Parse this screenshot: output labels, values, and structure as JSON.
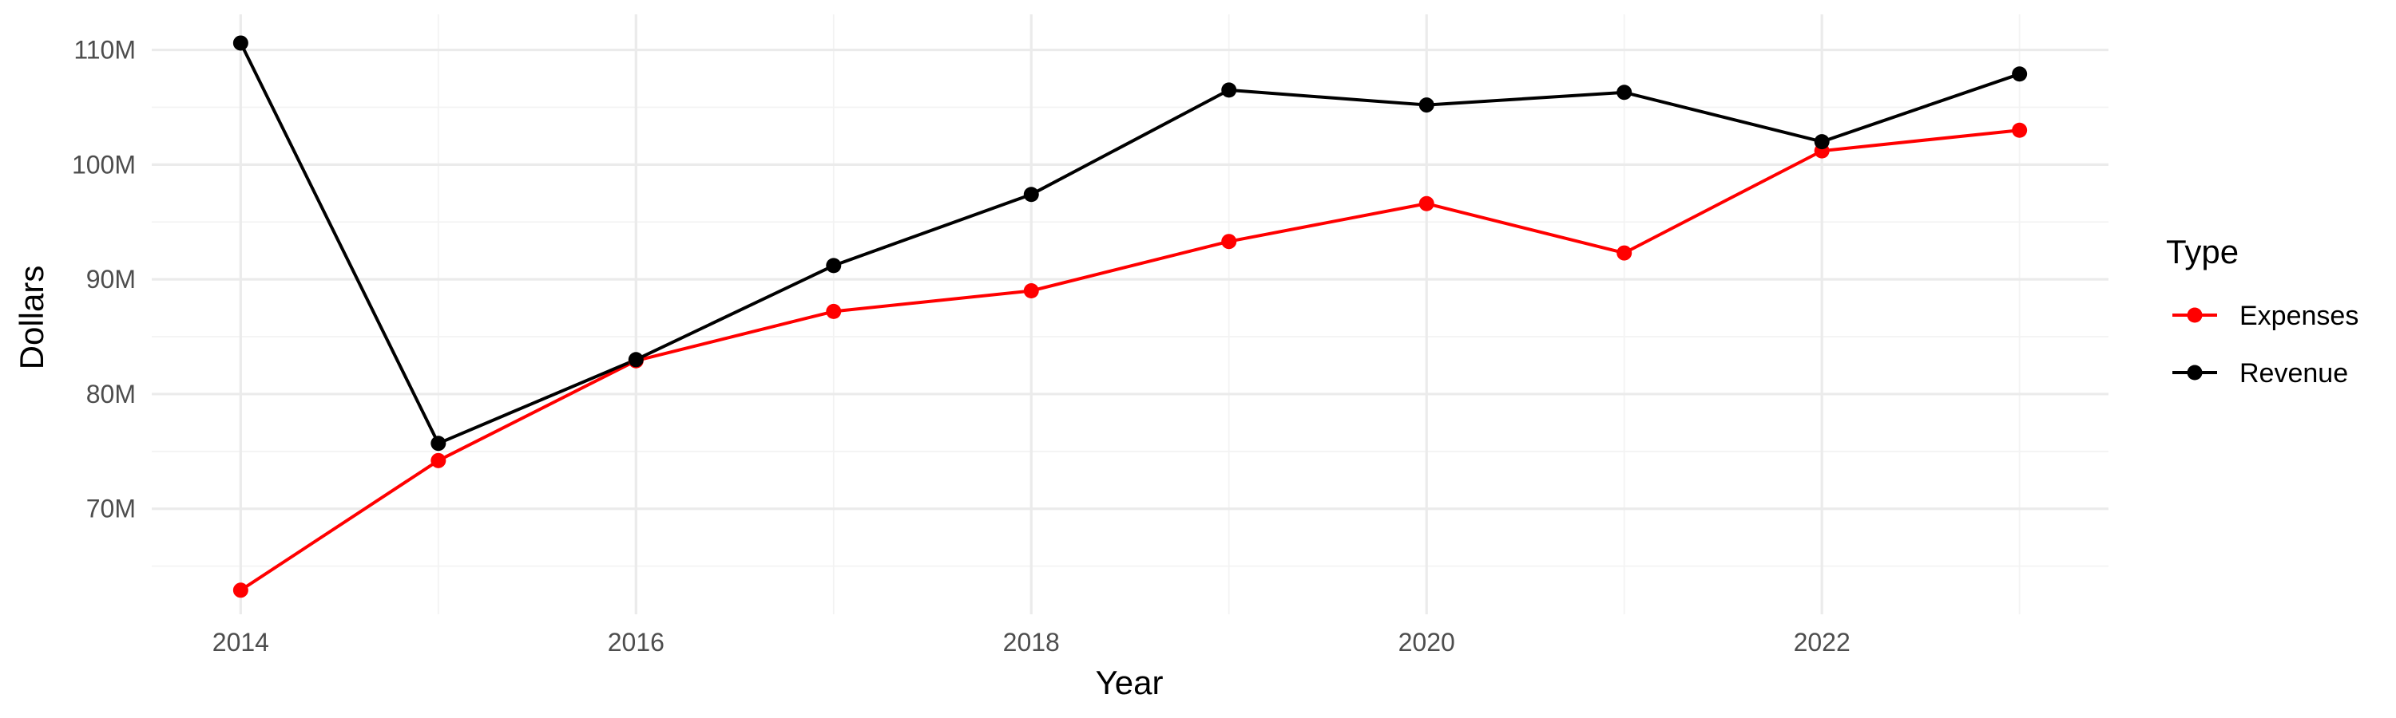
{
  "chart_data": {
    "type": "line",
    "xlabel": "Year",
    "ylabel": "Dollars",
    "x": [
      2014,
      2015,
      2016,
      2017,
      2018,
      2019,
      2020,
      2021,
      2022,
      2023
    ],
    "x_ticks": [
      2014,
      2016,
      2018,
      2020,
      2022
    ],
    "x_tick_labels": [
      "2014",
      "2016",
      "2018",
      "2020",
      "2022"
    ],
    "y_ticks": [
      70000000,
      80000000,
      90000000,
      100000000,
      110000000
    ],
    "y_tick_labels": [
      "70M",
      "80M",
      "90M",
      "100M",
      "110M"
    ],
    "xlim": [
      2013.55,
      2023.45
    ],
    "ylim": [
      60800000,
      113100000
    ],
    "grid": true,
    "legend": {
      "title": "Type",
      "position": "right"
    },
    "series": [
      {
        "name": "Expenses",
        "color": "#ff0000",
        "values": [
          62900000,
          74200000,
          82900000,
          87200000,
          89000000,
          93300000,
          96600000,
          92300000,
          101200000,
          103000000
        ]
      },
      {
        "name": "Revenue",
        "color": "#000000",
        "values": [
          110600000,
          75700000,
          83000000,
          91200000,
          97400000,
          106500000,
          105200000,
          106300000,
          102000000,
          107900000
        ]
      }
    ]
  }
}
